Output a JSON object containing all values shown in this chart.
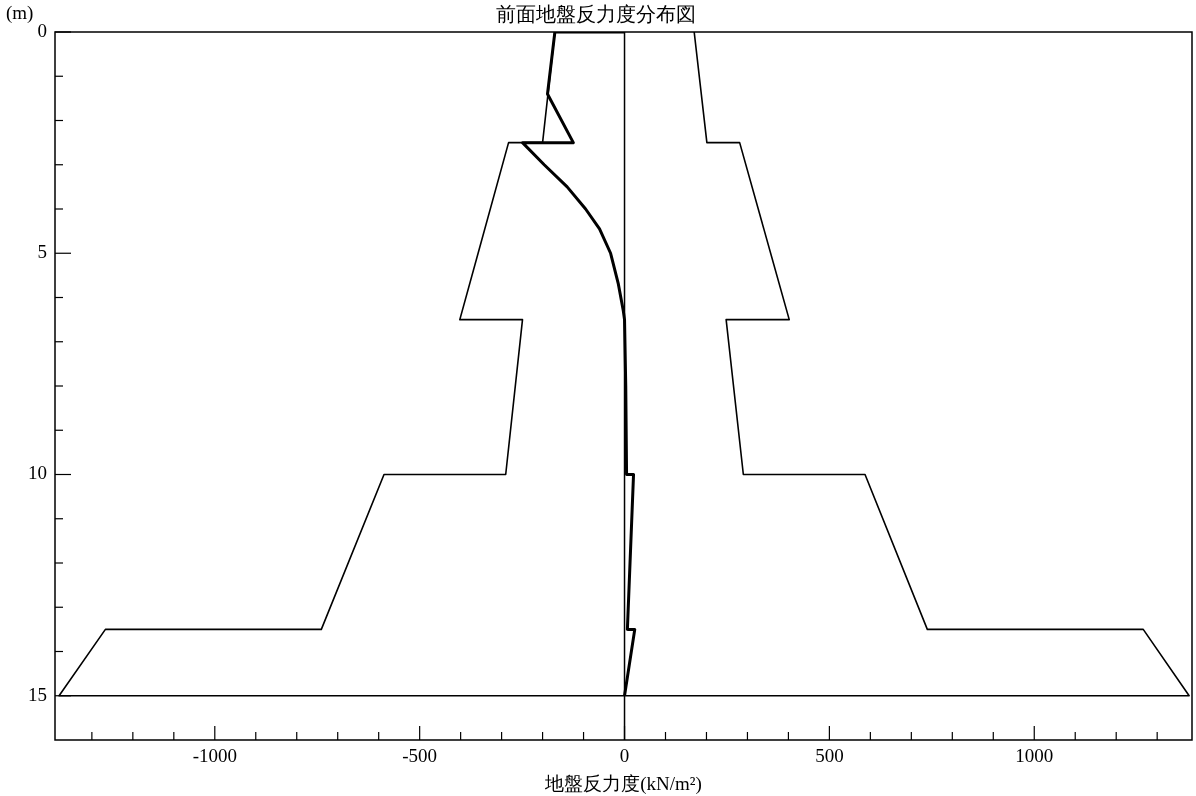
{
  "chart_data": {
    "type": "line",
    "title": "前面地盤反力度分布図",
    "xlabel": "地盤反力度(kN/m²)",
    "ylabel": "(m)",
    "xlim": [
      -1390,
      1385
    ],
    "xticks": [
      {
        "value": -1300,
        "label": null
      },
      {
        "value": -1200,
        "label": null
      },
      {
        "value": -1100,
        "label": null
      },
      -1000,
      {
        "value": -900,
        "label": null
      },
      {
        "value": -800,
        "label": null
      },
      {
        "value": -700,
        "label": null
      },
      {
        "value": -600,
        "label": null
      },
      -500,
      {
        "value": -400,
        "label": null
      },
      {
        "value": -300,
        "label": null
      },
      {
        "value": -200,
        "label": null
      },
      {
        "value": -100,
        "label": null
      },
      0,
      {
        "value": 100,
        "label": null
      },
      {
        "value": 200,
        "label": null
      },
      {
        "value": 300,
        "label": null
      },
      {
        "value": 400,
        "label": null
      },
      500,
      {
        "value": 600,
        "label": null
      },
      {
        "value": 700,
        "label": null
      },
      {
        "value": 800,
        "label": null
      },
      {
        "value": 900,
        "label": null
      },
      1000,
      {
        "value": 1100,
        "label": null
      },
      {
        "value": 1200,
        "label": null
      },
      {
        "value": 1300,
        "label": null
      }
    ],
    "ylim": [
      16,
      0
    ],
    "yticks": [
      0,
      {
        "value": 1,
        "label": null
      },
      {
        "value": 2,
        "label": null
      },
      {
        "value": 3,
        "label": null
      },
      {
        "value": 4,
        "label": null
      },
      5,
      {
        "value": 6,
        "label": null
      },
      {
        "value": 7,
        "label": null
      },
      {
        "value": 8,
        "label": null
      },
      {
        "value": 9,
        "label": null
      },
      10,
      {
        "value": 11,
        "label": null
      },
      {
        "value": 12,
        "label": null
      },
      {
        "value": 13,
        "label": null
      },
      {
        "value": 14,
        "label": null
      },
      15
    ],
    "grid": false,
    "legend": false,
    "marker": "none",
    "line_style": "solid",
    "ref_lines": [
      {
        "axis": "x",
        "value": 0,
        "color": "#000000"
      }
    ],
    "series": [
      {
        "type": "line",
        "color": "#000000",
        "x": [
          -170,
          -200,
          -283,
          -402,
          -249,
          -290,
          -587,
          -740,
          -1267,
          -1380,
          1378,
          1266,
          739,
          587,
          290,
          248,
          402,
          281,
          201,
          170
        ],
        "values": [
          0,
          2.5,
          2.5,
          6.5,
          6.5,
          10,
          10,
          13.5,
          13.5,
          15,
          15,
          13.5,
          13.5,
          10,
          10,
          6.5,
          6.5,
          2.5,
          2.5,
          0
        ]
      },
      {
        "type": "line",
        "color": "#000000",
        "x": [
          0,
          -170,
          -188,
          -125,
          -249,
          -196,
          -140,
          -95,
          -61,
          -34,
          -15,
          -3,
          0,
          3,
          5,
          22,
          7,
          25,
          0
        ],
        "values": [
          0,
          0,
          1.4,
          2.5,
          2.5,
          3,
          3.5,
          4,
          4.45,
          5,
          5.7,
          6.3,
          6.5,
          8,
          10,
          10,
          13.5,
          13.5,
          15
        ]
      }
    ]
  }
}
